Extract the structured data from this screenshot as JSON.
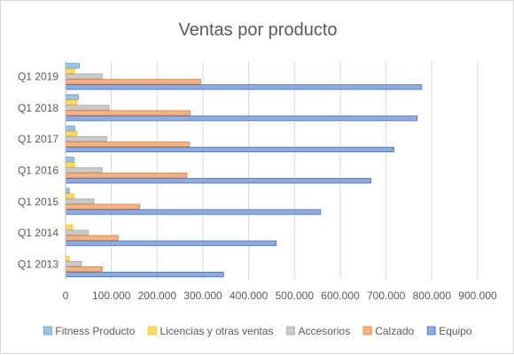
{
  "chart_data": {
    "type": "bar",
    "orientation": "horizontal",
    "title": "Ventas por producto",
    "categories": [
      "Q1 2013",
      "Q1 2014",
      "Q1 2015",
      "Q1 2016",
      "Q1 2017",
      "Q1 2018",
      "Q1 2019"
    ],
    "series": [
      {
        "name": "Fitness Producto",
        "color": "#9dc3e6",
        "stroke": "#5b9bd5",
        "values": [
          0,
          0,
          8000,
          18000,
          20000,
          28000,
          30000
        ]
      },
      {
        "name": "Licencias y otras ventas",
        "color": "#ffd966",
        "stroke": "#ffc000",
        "values": [
          8000,
          15000,
          18000,
          20000,
          25000,
          25000,
          20000
        ]
      },
      {
        "name": "Accesorios",
        "color": "#c9c9c9",
        "stroke": "#a5a5a5",
        "values": [
          35000,
          50000,
          62000,
          80000,
          90000,
          95000,
          80000
        ]
      },
      {
        "name": "Calzado",
        "color": "#f4b183",
        "stroke": "#ed7d31",
        "values": [
          80000,
          115000,
          162000,
          265000,
          270000,
          272000,
          295000
        ]
      },
      {
        "name": "Equipo",
        "color": "#8faadc",
        "stroke": "#4472c4",
        "values": [
          345000,
          460000,
          557000,
          667000,
          717000,
          768000,
          778000
        ]
      }
    ],
    "xlim": [
      0,
      900000
    ],
    "x_ticks": [
      0,
      100000,
      200000,
      300000,
      400000,
      500000,
      600000,
      700000,
      800000,
      900000
    ],
    "x_tick_labels": [
      "0",
      "100.000",
      "200.000",
      "300.000",
      "400.000",
      "500.000",
      "600.000",
      "700.000",
      "800.000",
      "900.000"
    ],
    "grid": true,
    "legend": "bottom"
  }
}
